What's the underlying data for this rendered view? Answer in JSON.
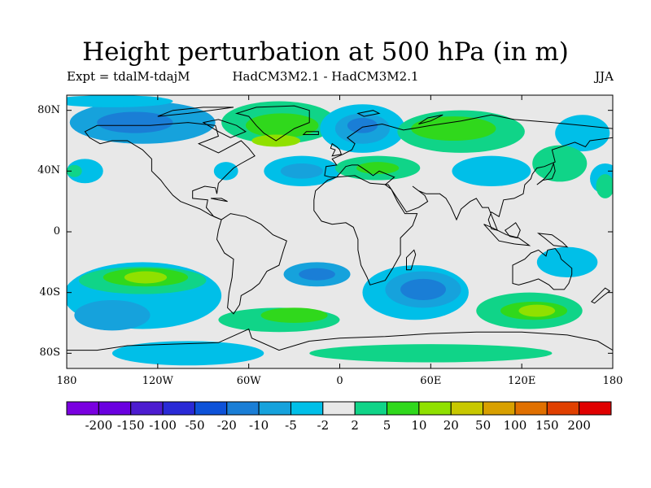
{
  "title": "Height perturbation at 500 hPa (in m)",
  "subtitle_left": "Expt = tdalM-tdajM",
  "subtitle_center": "HadCM3M2.1 - HadCM3M2.1",
  "subtitle_right": "JJA",
  "chart_data": {
    "type": "heatmap",
    "variable": "Height perturbation at 500 hPa",
    "units": "m",
    "season": "JJA",
    "projection": "cylindrical equidistant",
    "xlim": [
      -180,
      180
    ],
    "ylim": [
      -90,
      90
    ],
    "lat_tick_labels": [
      {
        "value": 80,
        "label": "80N"
      },
      {
        "value": 40,
        "label": "40N"
      },
      {
        "value": 0,
        "label": "0"
      },
      {
        "value": -40,
        "label": "40S"
      },
      {
        "value": -80,
        "label": "80S"
      }
    ],
    "lon_tick_labels": [
      {
        "value": -180,
        "label": "180"
      },
      {
        "value": -120,
        "label": "120W"
      },
      {
        "value": -60,
        "label": "60W"
      },
      {
        "value": 0,
        "label": "0"
      },
      {
        "value": 60,
        "label": "60E"
      },
      {
        "value": 120,
        "label": "120E"
      },
      {
        "value": 180,
        "label": "180"
      }
    ],
    "contour_levels": [
      "-200",
      "-150",
      "-100",
      "-50",
      "-20",
      "-10",
      "-5",
      "-2",
      "2",
      "5",
      "10",
      "20",
      "50",
      "100",
      "150",
      "200"
    ],
    "colorbar_colors": [
      "#7a00e0",
      "#6a00e0",
      "#4d1cd0",
      "#2a2ad6",
      "#0e52d8",
      "#1a7ed6",
      "#16a2dc",
      "#00bfe8",
      "#e8e8e8",
      "#10d488",
      "#30d81c",
      "#90e000",
      "#c8c800",
      "#d8a000",
      "#e07000",
      "#e04000",
      "#e00000"
    ],
    "regions": [
      {
        "name": "arctic-canada",
        "level_index": 6,
        "lon": -130,
        "lat": 72,
        "rlon": 48,
        "rlat": 14
      },
      {
        "name": "arctic-canada-core",
        "level_index": 5,
        "lon": -135,
        "lat": 72,
        "rlon": 25,
        "rlat": 7
      },
      {
        "name": "north-pacific-high",
        "level_index": 7,
        "lon": -150,
        "lat": 86,
        "rlon": 40,
        "rlat": 4
      },
      {
        "name": "greenland-anomaly",
        "level_index": 9,
        "lon": -40,
        "lat": 72,
        "rlon": 38,
        "rlat": 14
      },
      {
        "name": "greenland-core",
        "level_index": 10,
        "lon": -38,
        "lat": 70,
        "rlon": 24,
        "rlat": 8
      },
      {
        "name": "greenland-max",
        "level_index": 11,
        "lon": -42,
        "lat": 60,
        "rlon": 16,
        "rlat": 4
      },
      {
        "name": "nw-atlantic",
        "level_index": 7,
        "lon": -25,
        "lat": 40,
        "rlon": 25,
        "rlat": 10
      },
      {
        "name": "nw-atlantic-core",
        "level_index": 6,
        "lon": -25,
        "lat": 40,
        "rlon": 14,
        "rlat": 5
      },
      {
        "name": "sw-atlantic-north",
        "level_index": 7,
        "lon": -75,
        "lat": 40,
        "rlon": 8,
        "rlat": 6
      },
      {
        "name": "scandinavia",
        "level_index": 7,
        "lon": 15,
        "lat": 68,
        "rlon": 28,
        "rlat": 16
      },
      {
        "name": "scandinavia-core",
        "level_index": 6,
        "lon": 15,
        "lat": 68,
        "rlon": 18,
        "rlat": 10
      },
      {
        "name": "scandinavia-max",
        "level_index": 5,
        "lon": 15,
        "lat": 70,
        "rlon": 10,
        "rlat": 5
      },
      {
        "name": "europe-positive",
        "level_index": 9,
        "lon": 25,
        "lat": 42,
        "rlon": 28,
        "rlat": 8
      },
      {
        "name": "europe-core",
        "level_index": 10,
        "lon": 25,
        "lat": 42,
        "rlon": 14,
        "rlat": 4
      },
      {
        "name": "siberia-positive",
        "level_index": 9,
        "lon": 80,
        "lat": 66,
        "rlon": 42,
        "rlat": 14
      },
      {
        "name": "siberia-core",
        "level_index": 10,
        "lon": 75,
        "lat": 68,
        "rlon": 28,
        "rlat": 8
      },
      {
        "name": "central-asia",
        "level_index": 7,
        "lon": 100,
        "lat": 40,
        "rlon": 26,
        "rlat": 10
      },
      {
        "name": "east-asia-north",
        "level_index": 7,
        "lon": 160,
        "lat": 65,
        "rlon": 18,
        "rlat": 12
      },
      {
        "name": "east-asia-positive",
        "level_index": 9,
        "lon": 145,
        "lat": 45,
        "rlon": 18,
        "rlat": 12
      },
      {
        "name": "west-pacific",
        "level_index": 7,
        "lon": 175,
        "lat": 35,
        "rlon": 10,
        "rlat": 10
      },
      {
        "name": "west-pacific-pos",
        "level_index": 9,
        "lon": 175,
        "lat": 30,
        "rlon": 6,
        "rlat": 8
      },
      {
        "name": "north-pacific-west",
        "level_index": 7,
        "lon": -168,
        "lat": 40,
        "rlon": 12,
        "rlat": 8
      },
      {
        "name": "north-pacific-west-pos",
        "level_index": 9,
        "lon": -175,
        "lat": 40,
        "rlon": 5,
        "rlat": 4
      },
      {
        "name": "south-pacific-band",
        "level_index": 7,
        "lon": -130,
        "lat": -42,
        "rlon": 52,
        "rlat": 22
      },
      {
        "name": "south-pacific-high",
        "level_index": 9,
        "lon": -130,
        "lat": -32,
        "rlon": 42,
        "rlat": 9
      },
      {
        "name": "south-pacific-high-core",
        "level_index": 10,
        "lon": -128,
        "lat": -30,
        "rlon": 28,
        "rlat": 6
      },
      {
        "name": "south-pacific-high-max",
        "level_index": 11,
        "lon": -128,
        "lat": -30,
        "rlon": 14,
        "rlat": 4
      },
      {
        "name": "south-pacific-low",
        "level_index": 6,
        "lon": -150,
        "lat": -55,
        "rlon": 25,
        "rlat": 10
      },
      {
        "name": "south-atlantic-low",
        "level_index": 6,
        "lon": -15,
        "lat": -28,
        "rlon": 22,
        "rlat": 8
      },
      {
        "name": "south-atlantic-low-core",
        "level_index": 5,
        "lon": -15,
        "lat": -28,
        "rlon": 12,
        "rlat": 4
      },
      {
        "name": "south-ocean-pos",
        "level_index": 9,
        "lon": -40,
        "lat": -58,
        "rlon": 40,
        "rlat": 8
      },
      {
        "name": "south-ocean-pos-core",
        "level_index": 10,
        "lon": -30,
        "lat": -55,
        "rlon": 22,
        "rlat": 5
      },
      {
        "name": "indian-ocean-low",
        "level_index": 7,
        "lon": 50,
        "lat": -40,
        "rlon": 35,
        "rlat": 18
      },
      {
        "name": "indian-ocean-low-core",
        "level_index": 6,
        "lon": 55,
        "lat": -38,
        "rlon": 25,
        "rlat": 12
      },
      {
        "name": "indian-ocean-low-max",
        "level_index": 5,
        "lon": 55,
        "lat": -38,
        "rlon": 15,
        "rlat": 7
      },
      {
        "name": "australia-south-pos",
        "level_index": 9,
        "lon": 125,
        "lat": -52,
        "rlon": 35,
        "rlat": 12
      },
      {
        "name": "australia-south-core",
        "level_index": 10,
        "lon": 128,
        "lat": -52,
        "rlon": 22,
        "rlat": 6
      },
      {
        "name": "australia-south-max",
        "level_index": 11,
        "lon": 130,
        "lat": -52,
        "rlon": 12,
        "rlat": 4
      },
      {
        "name": "australia-east-low",
        "level_index": 7,
        "lon": 150,
        "lat": -20,
        "rlon": 20,
        "rlat": 10
      },
      {
        "name": "antarctic-pos",
        "level_index": 9,
        "lon": 60,
        "lat": -80,
        "rlon": 80,
        "rlat": 6
      },
      {
        "name": "antarctic-neg",
        "level_index": 7,
        "lon": -100,
        "lat": -80,
        "rlon": 50,
        "rlat": 8
      }
    ]
  },
  "map": {
    "ocean_color": "#e8e8e8",
    "coast_color": "#000000"
  }
}
